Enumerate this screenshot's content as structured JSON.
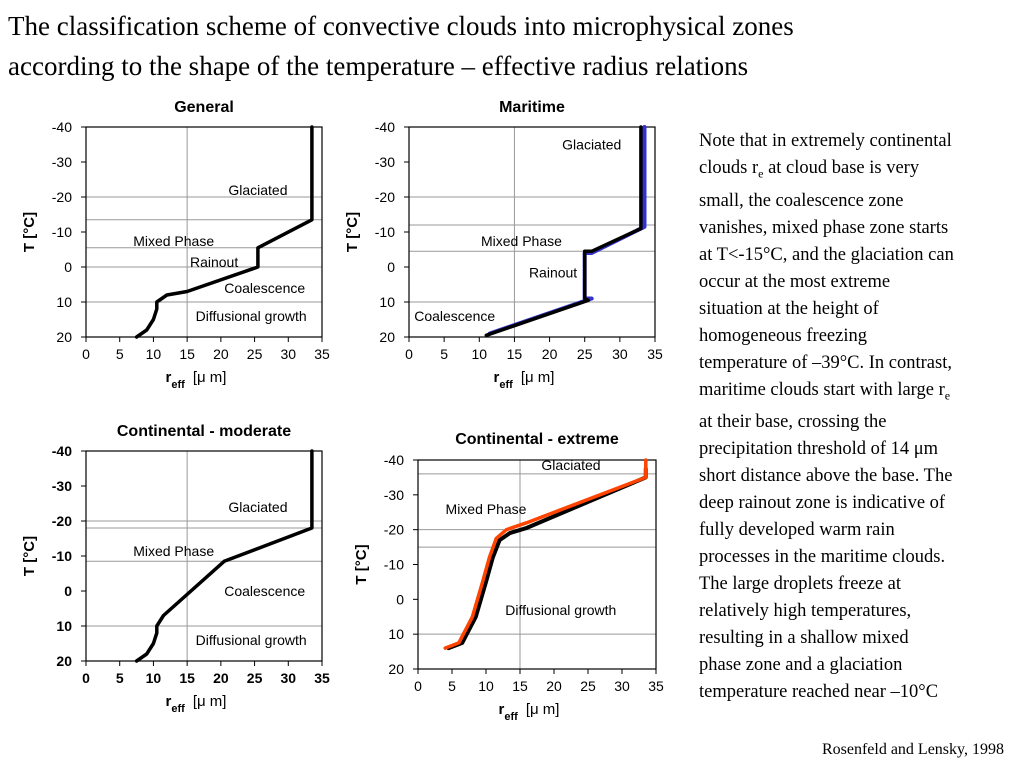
{
  "title_lines": [
    "The classification scheme of convective clouds into microphysical zones",
    "according to the shape of the temperature – effective radius relations"
  ],
  "note_lines": [
    "Note that in extremely continental",
    "clouds r_e at cloud base is very",
    "small, the coalescence zone",
    "vanishes, mixed phase zone starts",
    "at T<-15°C, and the glaciation can",
    "occur at the most extreme",
    "situation at the height of",
    "homogeneous freezing",
    "temperature of –39°C. In contrast,",
    "maritime clouds start with large r_e",
    "at their base, crossing the",
    "precipitation threshold of 14 μm",
    "short distance above the base. The",
    "deep rainout zone is indicative of",
    "fully developed warm rain",
    "processes in the maritime clouds.",
    "The large droplets freeze at",
    "relatively high temperatures,",
    "resulting in a shallow mixed",
    "phase zone and a glaciation",
    "temperature reached near –10°C"
  ],
  "citation": "Rosenfeld and Lensky, 1998",
  "chart_data": [
    {
      "type": "line",
      "title": "General",
      "xlabel": "r_eff [μ m]",
      "ylabel": "T [°C]",
      "xlim": [
        0,
        35
      ],
      "ylim": [
        20,
        -40
      ],
      "xticks": [
        "0",
        "5",
        "10",
        "15",
        "20",
        "25",
        "30",
        "35"
      ],
      "yticks": [
        "-40",
        "-30",
        "-20",
        "-10",
        "0",
        "10",
        "20"
      ],
      "grid": "vertical at r=15, horizontal at T=-20 and T=10; zone boundaries at T=-13.5, -5.5, 0",
      "zone_boundaries": [
        -13.5,
        -5.5,
        0
      ],
      "zones": [
        {
          "label": "Glaciated",
          "r": 25.5,
          "t": -22
        },
        {
          "label": "Mixed Phase",
          "r": 13,
          "t": -7.5
        },
        {
          "label": "Rainout",
          "r": 19,
          "t": -1.5
        },
        {
          "label": "Coalescence",
          "r": 26.5,
          "t": 6
        },
        {
          "label": "Diffusional growth",
          "r": 24.5,
          "t": 14
        }
      ],
      "series": [
        {
          "color": "#000000",
          "x": [
            7.5,
            9,
            10,
            10.5,
            10.5,
            12,
            15,
            25.5,
            25.5,
            33.5,
            33.5
          ],
          "y": [
            20,
            18,
            15,
            12,
            10,
            8,
            7,
            0,
            -5.5,
            -13.5,
            -40
          ]
        }
      ]
    },
    {
      "type": "line",
      "title": "Maritime",
      "xlabel": "r_eff [μ m]",
      "ylabel": "T [°C]",
      "xlim": [
        0,
        35
      ],
      "ylim": [
        20,
        -40
      ],
      "xticks": [
        "0",
        "5",
        "10",
        "15",
        "20",
        "25",
        "30",
        "35"
      ],
      "yticks": [
        "-40",
        "-30",
        "-20",
        "-10",
        "0",
        "10",
        "20"
      ],
      "grid": "vertical at r=15, horizontal at T=-20 and T=10; zone boundaries at T=-12, -4.5",
      "zone_boundaries": [
        -12,
        -4.5
      ],
      "zones": [
        {
          "label": "Glaciated",
          "r": 26,
          "t": -35
        },
        {
          "label": "Mixed Phase",
          "r": 16,
          "t": -7.5
        },
        {
          "label": "Rainout",
          "r": 20.5,
          "t": 1.5
        },
        {
          "label": "Coalescence",
          "r": 6.5,
          "t": 14
        }
      ],
      "series": [
        {
          "color": "#3333cc",
          "x": [
            11.5,
            26,
            25,
            25,
            26,
            33.5,
            33.5
          ],
          "y": [
            19,
            9,
            9,
            -4,
            -4,
            -11.5,
            -40
          ]
        },
        {
          "color": "#000000",
          "x": [
            11,
            25.5,
            25,
            25,
            26,
            33,
            33
          ],
          "y": [
            19.5,
            9.5,
            9,
            -4.5,
            -4.5,
            -11,
            -40
          ]
        }
      ]
    },
    {
      "type": "line",
      "title": "Continental - moderate",
      "xlabel": "r_eff [μ m]",
      "ylabel": "T [°C]",
      "xlim": [
        0,
        35
      ],
      "ylim": [
        20,
        -40
      ],
      "xticks": [
        "0",
        "5",
        "10",
        "15",
        "20",
        "25",
        "30",
        "35"
      ],
      "yticks": [
        "-40",
        "-30",
        "-20",
        "-10",
        "0",
        "10",
        "20"
      ],
      "bold_ticks": true,
      "grid": "vertical at r=15, horizontal at T=-20 and T=10; zone boundaries at T=-18, -8.5",
      "zone_boundaries": [
        -18,
        -8.5
      ],
      "zones": [
        {
          "label": "Glaciated",
          "r": 25.5,
          "t": -24
        },
        {
          "label": "Mixed Phase",
          "r": 13,
          "t": -11.5
        },
        {
          "label": "Coalescence",
          "r": 26.5,
          "t": 0
        },
        {
          "label": "Diffusional growth",
          "r": 24.5,
          "t": 14
        }
      ],
      "series": [
        {
          "color": "#000000",
          "x": [
            7.5,
            9,
            10,
            10.5,
            10.5,
            11.5,
            20.5,
            33.5,
            33.5
          ],
          "y": [
            20,
            18,
            15,
            12,
            10,
            7,
            -8.5,
            -18,
            -40
          ]
        }
      ]
    },
    {
      "type": "line",
      "title": "Continental - extreme",
      "xlabel": "r_eff [μ m]",
      "ylabel": "T [°C]",
      "xlim": [
        0,
        35
      ],
      "ylim": [
        20,
        -40
      ],
      "xticks": [
        "0",
        "5",
        "10",
        "15",
        "20",
        "25",
        "30",
        "35"
      ],
      "yticks": [
        "-40",
        "-30",
        "-20",
        "-10",
        "0",
        "10",
        "20"
      ],
      "grid": "vertical at r=15, horizontal at T=-20 and T=10; zone boundaries at T=-36, -15",
      "zone_boundaries": [
        -36,
        -15
      ],
      "zones": [
        {
          "label": "Glaciated",
          "r": 22.5,
          "t": -38.5
        },
        {
          "label": "Mixed Phase",
          "r": 10,
          "t": -26
        },
        {
          "label": "Diffusional growth",
          "r": 21,
          "t": 3
        }
      ],
      "series": [
        {
          "color": "#000000",
          "x": [
            4.5,
            6.5,
            8.5,
            10,
            11,
            12,
            13.5,
            16,
            33.5,
            33.5
          ],
          "y": [
            14,
            12.5,
            5,
            -5,
            -12,
            -17,
            -19,
            -20.5,
            -35,
            -37.5
          ]
        },
        {
          "color": "#ff4400",
          "x": [
            4,
            6,
            8,
            9.5,
            10.5,
            11.5,
            13,
            16,
            33.5,
            33.5
          ],
          "y": [
            14,
            12.5,
            5,
            -5,
            -12,
            -17.5,
            -20,
            -22,
            -35,
            -40
          ]
        }
      ]
    }
  ]
}
